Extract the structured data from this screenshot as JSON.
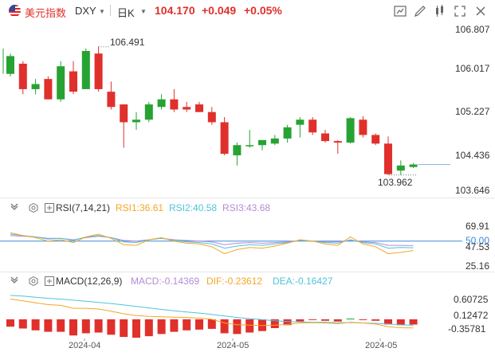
{
  "header": {
    "name": "美元指数",
    "code": "DXY",
    "period": "日K",
    "price": "104.170",
    "change": "+0.049",
    "change_pct": "+0.05%",
    "price_color": "#e0302c"
  },
  "toolbar": {
    "icons": [
      "fullscreen-icon",
      "draw-icon",
      "indicator-icon",
      "expand-icon",
      "close-icon"
    ]
  },
  "main_chart": {
    "y_ticks": [
      "106.807",
      "106.017",
      "105.227",
      "104.436",
      "103.646"
    ],
    "high_label": "106.491",
    "low_label": "103.962",
    "last_price": "104.170"
  },
  "rsi": {
    "title": "RSI(7,14,21)",
    "rsi1": "RSI1:36.61",
    "rsi2": "RSI2:40.58",
    "rsi3": "RSI3:43.68",
    "y_ticks": [
      "69.91",
      "50.00",
      "47.53",
      "25.16"
    ],
    "colors": {
      "rsi1": "#f5a623",
      "rsi2": "#4fc3d9",
      "rsi3": "#b48bd6"
    }
  },
  "macd": {
    "title": "MACD(12,26,9)",
    "macd": "MACD:-0.14369",
    "dif": "DIF:-0.23612",
    "dea": "DEA:-0.16427",
    "y_ticks": [
      "0.60725",
      "0.12472",
      "-0.35781"
    ],
    "colors": {
      "macd": "#b48bd6",
      "dif": "#f5a623",
      "dea": "#4fc3d9"
    }
  },
  "x_axis": {
    "dates": [
      "2024-04",
      "2024-05",
      "2024-05"
    ]
  },
  "colors": {
    "up": "#26a332",
    "down": "#e0302c"
  },
  "chart_data": {
    "type": "candlestick",
    "ylim": [
      103.646,
      106.807
    ],
    "candles": [
      {
        "o": 105.95,
        "h": 106.35,
        "l": 105.9,
        "c": 106.3
      },
      {
        "o": 106.15,
        "h": 106.2,
        "l": 105.55,
        "c": 105.65
      },
      {
        "o": 105.65,
        "h": 105.85,
        "l": 105.55,
        "c": 105.75
      },
      {
        "o": 105.85,
        "h": 105.9,
        "l": 105.45,
        "c": 105.45
      },
      {
        "o": 105.45,
        "h": 106.2,
        "l": 105.4,
        "c": 106.1
      },
      {
        "o": 106.0,
        "h": 106.2,
        "l": 105.55,
        "c": 105.6
      },
      {
        "o": 105.65,
        "h": 106.45,
        "l": 105.65,
        "c": 106.4
      },
      {
        "o": 106.35,
        "h": 106.49,
        "l": 105.6,
        "c": 105.65
      },
      {
        "o": 105.6,
        "h": 105.8,
        "l": 105.25,
        "c": 105.3
      },
      {
        "o": 105.35,
        "h": 105.35,
        "l": 104.5,
        "c": 105.0
      },
      {
        "o": 105.0,
        "h": 105.2,
        "l": 104.85,
        "c": 105.05
      },
      {
        "o": 105.05,
        "h": 105.4,
        "l": 105.0,
        "c": 105.35
      },
      {
        "o": 105.3,
        "h": 105.55,
        "l": 105.25,
        "c": 105.45
      },
      {
        "o": 105.45,
        "h": 105.65,
        "l": 105.2,
        "c": 105.25
      },
      {
        "o": 105.3,
        "h": 105.4,
        "l": 105.2,
        "c": 105.25
      },
      {
        "o": 105.35,
        "h": 105.4,
        "l": 105.2,
        "c": 105.2
      },
      {
        "o": 105.2,
        "h": 105.3,
        "l": 104.95,
        "c": 105.0
      },
      {
        "o": 105.0,
        "h": 105.1,
        "l": 104.35,
        "c": 104.38
      },
      {
        "o": 104.35,
        "h": 104.6,
        "l": 104.15,
        "c": 104.55
      },
      {
        "o": 104.55,
        "h": 104.85,
        "l": 104.5,
        "c": 104.55
      },
      {
        "o": 104.55,
        "h": 104.65,
        "l": 104.45,
        "c": 104.65
      },
      {
        "o": 104.58,
        "h": 104.75,
        "l": 104.55,
        "c": 104.68
      },
      {
        "o": 104.68,
        "h": 104.95,
        "l": 104.6,
        "c": 104.9
      },
      {
        "o": 104.95,
        "h": 105.1,
        "l": 104.7,
        "c": 105.05
      },
      {
        "o": 105.05,
        "h": 105.1,
        "l": 104.75,
        "c": 104.8
      },
      {
        "o": 104.78,
        "h": 104.85,
        "l": 104.6,
        "c": 104.63
      },
      {
        "o": 104.63,
        "h": 104.65,
        "l": 104.38,
        "c": 104.6
      },
      {
        "o": 104.6,
        "h": 105.1,
        "l": 104.58,
        "c": 105.08
      },
      {
        "o": 105.05,
        "h": 105.12,
        "l": 104.7,
        "c": 104.75
      },
      {
        "o": 104.75,
        "h": 104.78,
        "l": 104.55,
        "c": 104.58
      },
      {
        "o": 104.58,
        "h": 104.72,
        "l": 103.96,
        "c": 103.98
      },
      {
        "o": 104.05,
        "h": 104.25,
        "l": 103.96,
        "c": 104.15
      },
      {
        "o": 104.12,
        "h": 104.2,
        "l": 104.1,
        "c": 104.17
      }
    ],
    "rsi_lines": {
      "ylim": [
        10,
        85
      ],
      "rsi1": [
        62,
        58,
        55,
        50,
        52,
        48,
        56,
        60,
        54,
        45,
        44,
        52,
        55,
        50,
        47,
        46,
        42,
        32,
        38,
        41,
        40,
        43,
        47,
        52,
        50,
        46,
        44,
        56,
        46,
        42,
        32,
        34,
        36.61
      ],
      "rsi2": [
        60,
        58,
        56,
        53,
        54,
        51,
        56,
        58,
        55,
        49,
        48,
        52,
        54,
        51,
        49,
        48,
        46,
        40,
        43,
        45,
        44,
        46,
        48,
        51,
        50,
        48,
        47,
        52,
        48,
        46,
        40,
        41,
        40.58
      ],
      "rsi3": [
        58,
        57,
        56,
        54,
        54,
        52,
        55,
        57,
        55,
        51,
        50,
        52,
        54,
        52,
        51,
        50,
        49,
        45,
        47,
        48,
        47,
        48,
        49,
        51,
        50,
        49,
        49,
        51,
        49,
        48,
        44,
        44,
        43.68
      ]
    },
    "macd_lines": {
      "ylim": [
        -0.5,
        0.8
      ],
      "dif": [
        0.55,
        0.5,
        0.45,
        0.4,
        0.38,
        0.3,
        0.3,
        0.28,
        0.22,
        0.15,
        0.1,
        0.08,
        0.07,
        0.06,
        0.05,
        0.03,
        0.0,
        -0.1,
        -0.15,
        -0.16,
        -0.17,
        -0.16,
        -0.14,
        -0.1,
        -0.09,
        -0.1,
        -0.12,
        -0.08,
        -0.1,
        -0.13,
        -0.2,
        -0.23,
        -0.23612
      ],
      "dea": [
        0.65,
        0.63,
        0.6,
        0.57,
        0.55,
        0.52,
        0.49,
        0.46,
        0.43,
        0.39,
        0.35,
        0.31,
        0.27,
        0.23,
        0.2,
        0.17,
        0.13,
        0.09,
        0.05,
        0.02,
        -0.01,
        -0.04,
        -0.06,
        -0.07,
        -0.08,
        -0.08,
        -0.09,
        -0.09,
        -0.1,
        -0.11,
        -0.13,
        -0.15,
        -0.16427
      ],
      "hist": [
        -0.2,
        -0.25,
        -0.3,
        -0.34,
        -0.34,
        -0.44,
        -0.38,
        -0.36,
        -0.42,
        -0.48,
        -0.5,
        -0.46,
        -0.4,
        -0.34,
        -0.3,
        -0.28,
        -0.26,
        -0.38,
        -0.4,
        -0.36,
        -0.32,
        -0.24,
        -0.16,
        -0.06,
        -0.02,
        -0.04,
        -0.06,
        0.02,
        -0.02,
        -0.04,
        -0.14,
        -0.16,
        -0.14369
      ]
    }
  }
}
